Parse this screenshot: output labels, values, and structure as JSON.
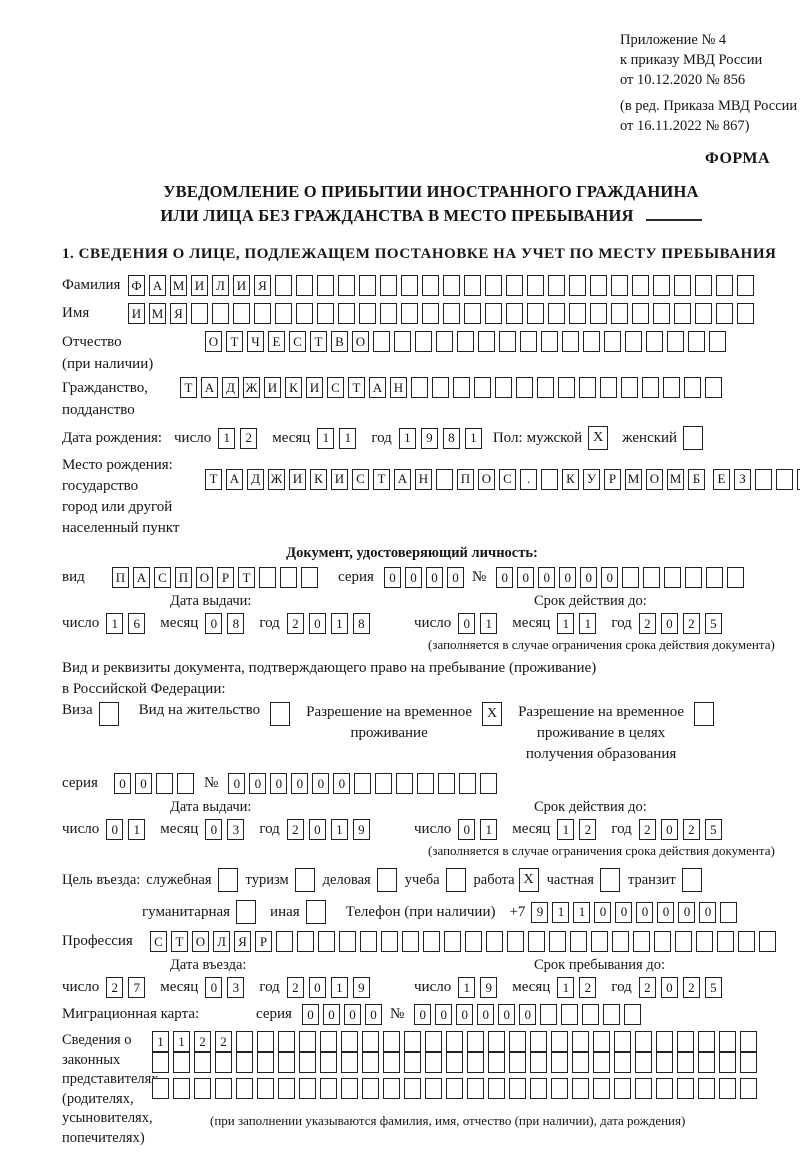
{
  "header": {
    "appendix_line1": "Приложение № 4",
    "appendix_line2": "к приказу МВД России",
    "appendix_line3": "от 10.12.2020 № 856",
    "revision_line1": "(в ред. Приказа МВД России",
    "revision_line2": "от 16.11.2022 № 867)",
    "forma_label": "ФОРМА"
  },
  "title": {
    "line1": "УВЕДОМЛЕНИЕ О ПРИБЫТИИ ИНОСТРАННОГО ГРАЖДАНИНА",
    "line2": "ИЛИ ЛИЦА БЕЗ ГРАЖДАНСТВА В МЕСТО ПРЕБЫВАНИЯ"
  },
  "section1_heading": "1. СВЕДЕНИЯ О ЛИЦЕ, ПОДЛЕЖАЩЕМ ПОСТАНОВКЕ НА УЧЕТ ПО МЕСТУ ПРЕБЫВАНИЯ",
  "date_labels": {
    "day": "число",
    "month": "месяц",
    "year": "год"
  },
  "person": {
    "surname": {
      "label": "Фамилия",
      "value": "ФАМИЛИЯ",
      "total": 30
    },
    "name": {
      "label": "Имя",
      "value": "ИМЯ",
      "total": 30
    },
    "patronymic": {
      "label_line1": "Отчество",
      "label_line2": "(при наличии)",
      "value": "ОТЧЕСТВО",
      "total": 25
    },
    "citizenship": {
      "label_line1": "Гражданство,",
      "label_line2": "подданство",
      "value": "ТАДЖИКИСТАН",
      "total": 26
    },
    "birth_date": {
      "label": "Дата рождения:",
      "day": "12",
      "month": "11",
      "year": "1981"
    },
    "sex": {
      "label": "Пол:",
      "male_label": "мужской",
      "male": "X",
      "female_label": "женский",
      "female": ""
    },
    "birth_place": {
      "label": "Место рождения:",
      "sublabel_line1": "государство",
      "sublabel_line2": "город или другой",
      "sublabel_line3": "населенный пункт",
      "row1": {
        "value": "ТАДЖИКИСТАН ПОС. КУРМОМБ",
        "total": 24
      },
      "row2": {
        "value": "ЕЗ",
        "total": 24
      },
      "row3": {
        "value": "",
        "total": 24
      }
    }
  },
  "identity_document": {
    "heading": "Документ, удостоверяющий личность:",
    "kind_label": "вид",
    "kind": {
      "value": "ПАСПОРТ",
      "total": 10
    },
    "series_label": "серия",
    "series": {
      "value": "0000",
      "total": 4
    },
    "number_label": "№",
    "number": {
      "value": "000000",
      "total": 12
    },
    "issue_heading": "Дата выдачи:",
    "issue_date": {
      "day": "16",
      "month": "08",
      "year": "2018"
    },
    "expiry_heading": "Срок действия до:",
    "expiry_date": {
      "day": "01",
      "month": "11",
      "year": "2025"
    },
    "expiry_note": "(заполняется в случае ограничения срока действия документа)"
  },
  "residence_document": {
    "intro_line1": "Вид и реквизиты документа, подтверждающего право на пребывание (проживание)",
    "intro_line2": "в Российской Федерации:",
    "visa_label": "Виза",
    "visa": "",
    "residence_permit_label": "Вид на жительство",
    "residence_permit": "",
    "temp_permit_label_line1": "Разрешение на временное",
    "temp_permit_label_line2": "проживание",
    "temp_permit": "X",
    "edu_permit_label_line1": "Разрешение на временное",
    "edu_permit_label_line2": "проживание в целях",
    "edu_permit_label_line3": "получения образования",
    "edu_permit": "",
    "series_label": "серия",
    "series": {
      "value": "00",
      "total": 4
    },
    "number_label": "№",
    "number": {
      "value": "000000",
      "total": 13
    },
    "issue_heading": "Дата выдачи:",
    "issue_date": {
      "day": "01",
      "month": "03",
      "year": "2019"
    },
    "expiry_heading": "Срок действия до:",
    "expiry_date": {
      "day": "01",
      "month": "12",
      "year": "2025"
    },
    "expiry_note": "(заполняется в случае ограничения срока действия документа)"
  },
  "visit": {
    "purpose_label": "Цель въезда:",
    "purposes": [
      {
        "label": "служебная",
        "checked": ""
      },
      {
        "label": "туризм",
        "checked": ""
      },
      {
        "label": "деловая",
        "checked": ""
      },
      {
        "label": "учеба",
        "checked": ""
      },
      {
        "label": "работа",
        "checked": "X"
      },
      {
        "label": "частная",
        "checked": ""
      },
      {
        "label": "транзит",
        "checked": ""
      }
    ],
    "purposes2": [
      {
        "label": "гуманитарная",
        "checked": ""
      },
      {
        "label": "иная",
        "checked": ""
      }
    ],
    "phone_label": "Телефон (при наличии)",
    "phone_prefix": "+7",
    "phone": {
      "value": "911000000",
      "total": 10
    },
    "profession_label": "Профессия",
    "profession": {
      "value": "СТОЛЯР",
      "total": 30
    },
    "entry_heading": "Дата въезда:",
    "entry_date": {
      "day": "27",
      "month": "03",
      "year": "2019"
    },
    "stay_heading": "Срок пребывания до:",
    "stay_date": {
      "day": "19",
      "month": "12",
      "year": "2025"
    }
  },
  "migration_card": {
    "label": "Миграционная карта:",
    "series_label": "серия",
    "series": {
      "value": "0000",
      "total": 4
    },
    "number_label": "№",
    "number": {
      "value": "000000",
      "total": 11
    }
  },
  "representatives": {
    "label_line1": "Сведения о",
    "label_line2": "законных",
    "label_line3": "представителях",
    "label_line4": "(родителях,",
    "label_line5": "усыновителях,",
    "label_line6": "попечителях)",
    "row1": {
      "value": "1122",
      "total": 29
    },
    "row2": {
      "value": "",
      "total": 29
    },
    "row3": {
      "value": "",
      "total": 29
    },
    "note": "(при заполнении указываются фамилия, имя, отчество (при наличии), дата рождения)"
  }
}
